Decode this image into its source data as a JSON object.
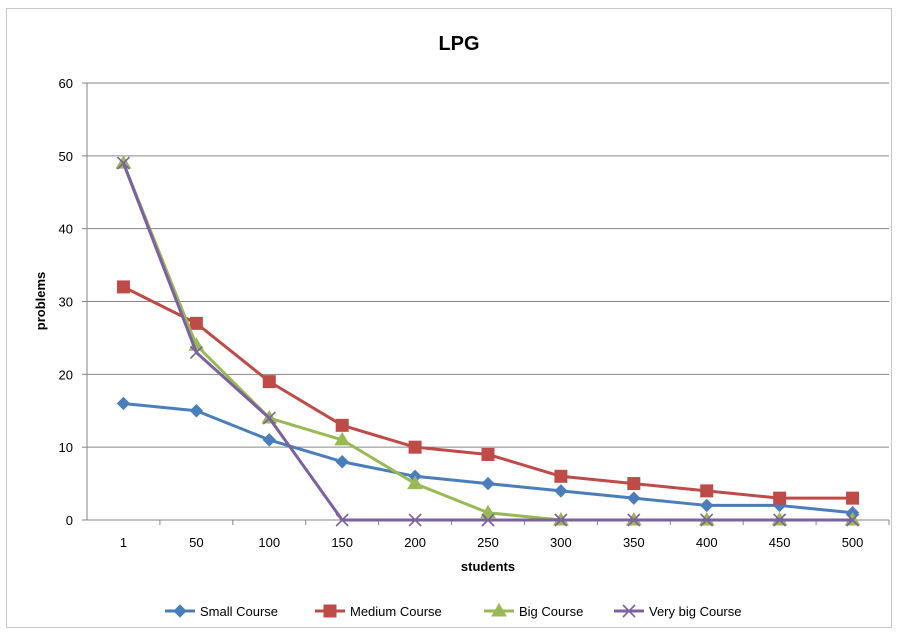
{
  "chart_data": {
    "type": "line",
    "title": "LPG",
    "xlabel": "students",
    "ylabel": "problems",
    "categories": [
      "1",
      "50",
      "100",
      "150",
      "200",
      "250",
      "300",
      "350",
      "400",
      "450",
      "500"
    ],
    "ylim": [
      0,
      60
    ],
    "yticks": [
      0,
      10,
      20,
      30,
      40,
      50,
      60
    ],
    "grid": "horizontal",
    "legend_position": "bottom",
    "series": [
      {
        "name": "Small Course",
        "color": "#4a7ebb",
        "marker": "diamond",
        "values": [
          16,
          15,
          11,
          8,
          6,
          5,
          4,
          3,
          2,
          2,
          1
        ]
      },
      {
        "name": "Medium Course",
        "color": "#be4b48",
        "marker": "square",
        "values": [
          32,
          27,
          19,
          13,
          10,
          9,
          6,
          5,
          4,
          3,
          3
        ]
      },
      {
        "name": "Big Course",
        "color": "#98b954",
        "marker": "triangle",
        "values": [
          49,
          24,
          14,
          11,
          5,
          1,
          0,
          0,
          0,
          0,
          0
        ]
      },
      {
        "name": "Very big Course",
        "color": "#7d60a0",
        "marker": "x",
        "values": [
          49,
          23,
          14,
          0,
          0,
          0,
          0,
          0,
          0,
          0,
          0
        ]
      }
    ]
  }
}
